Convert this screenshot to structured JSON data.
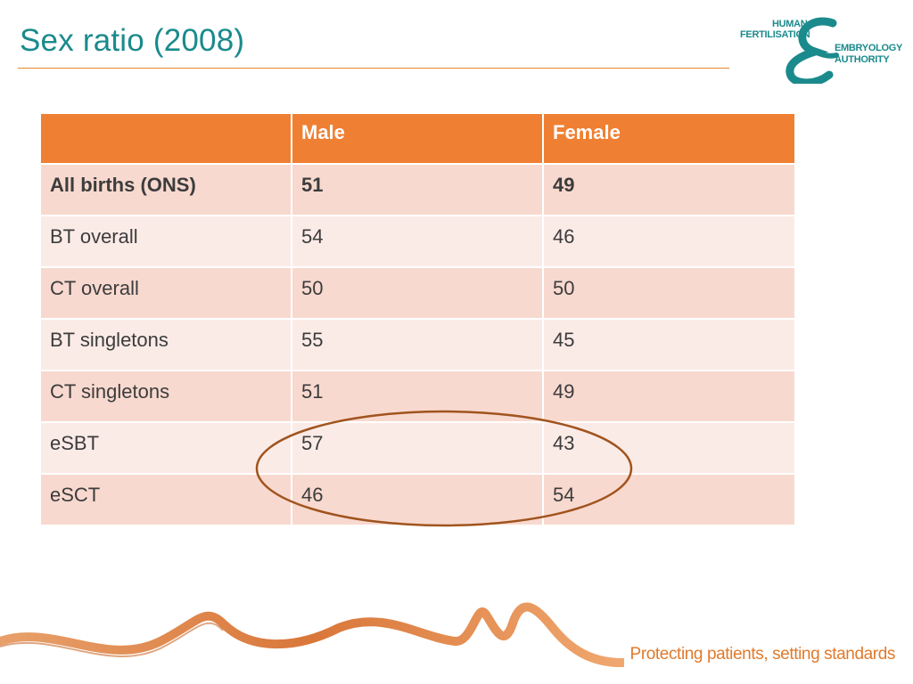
{
  "slide": {
    "title": "Sex ratio (2008)"
  },
  "logo": {
    "line1": "HUMAN",
    "line2": "FERTILISATION",
    "line3": "EMBRYOLOGY",
    "line4": "AUTHORITY",
    "ampersand": "&"
  },
  "table": {
    "headers": [
      "",
      "Male",
      "Female"
    ],
    "rows": [
      {
        "label": "All births (ONS)",
        "male": "51",
        "female": "49"
      },
      {
        "label": "BT overall",
        "male": "54",
        "female": "46"
      },
      {
        "label": "CT overall",
        "male": "50",
        "female": "50"
      },
      {
        "label": "BT singletons",
        "male": "55",
        "female": "45"
      },
      {
        "label": "CT singletons",
        "male": "51",
        "female": "49"
      },
      {
        "label": "eSBT",
        "male": "57",
        "female": "43"
      },
      {
        "label": "eSCT",
        "male": "46",
        "female": "54"
      }
    ]
  },
  "footer": {
    "tagline_bold": "Protecting patients",
    "tagline_rest": ", setting standards"
  },
  "colors": {
    "title": "#1b8a8c",
    "header_fill": "#ef8033",
    "row_dark": "#f8d9cf",
    "row_light": "#fbebe7",
    "highlight_ellipse": "#a0541e"
  }
}
